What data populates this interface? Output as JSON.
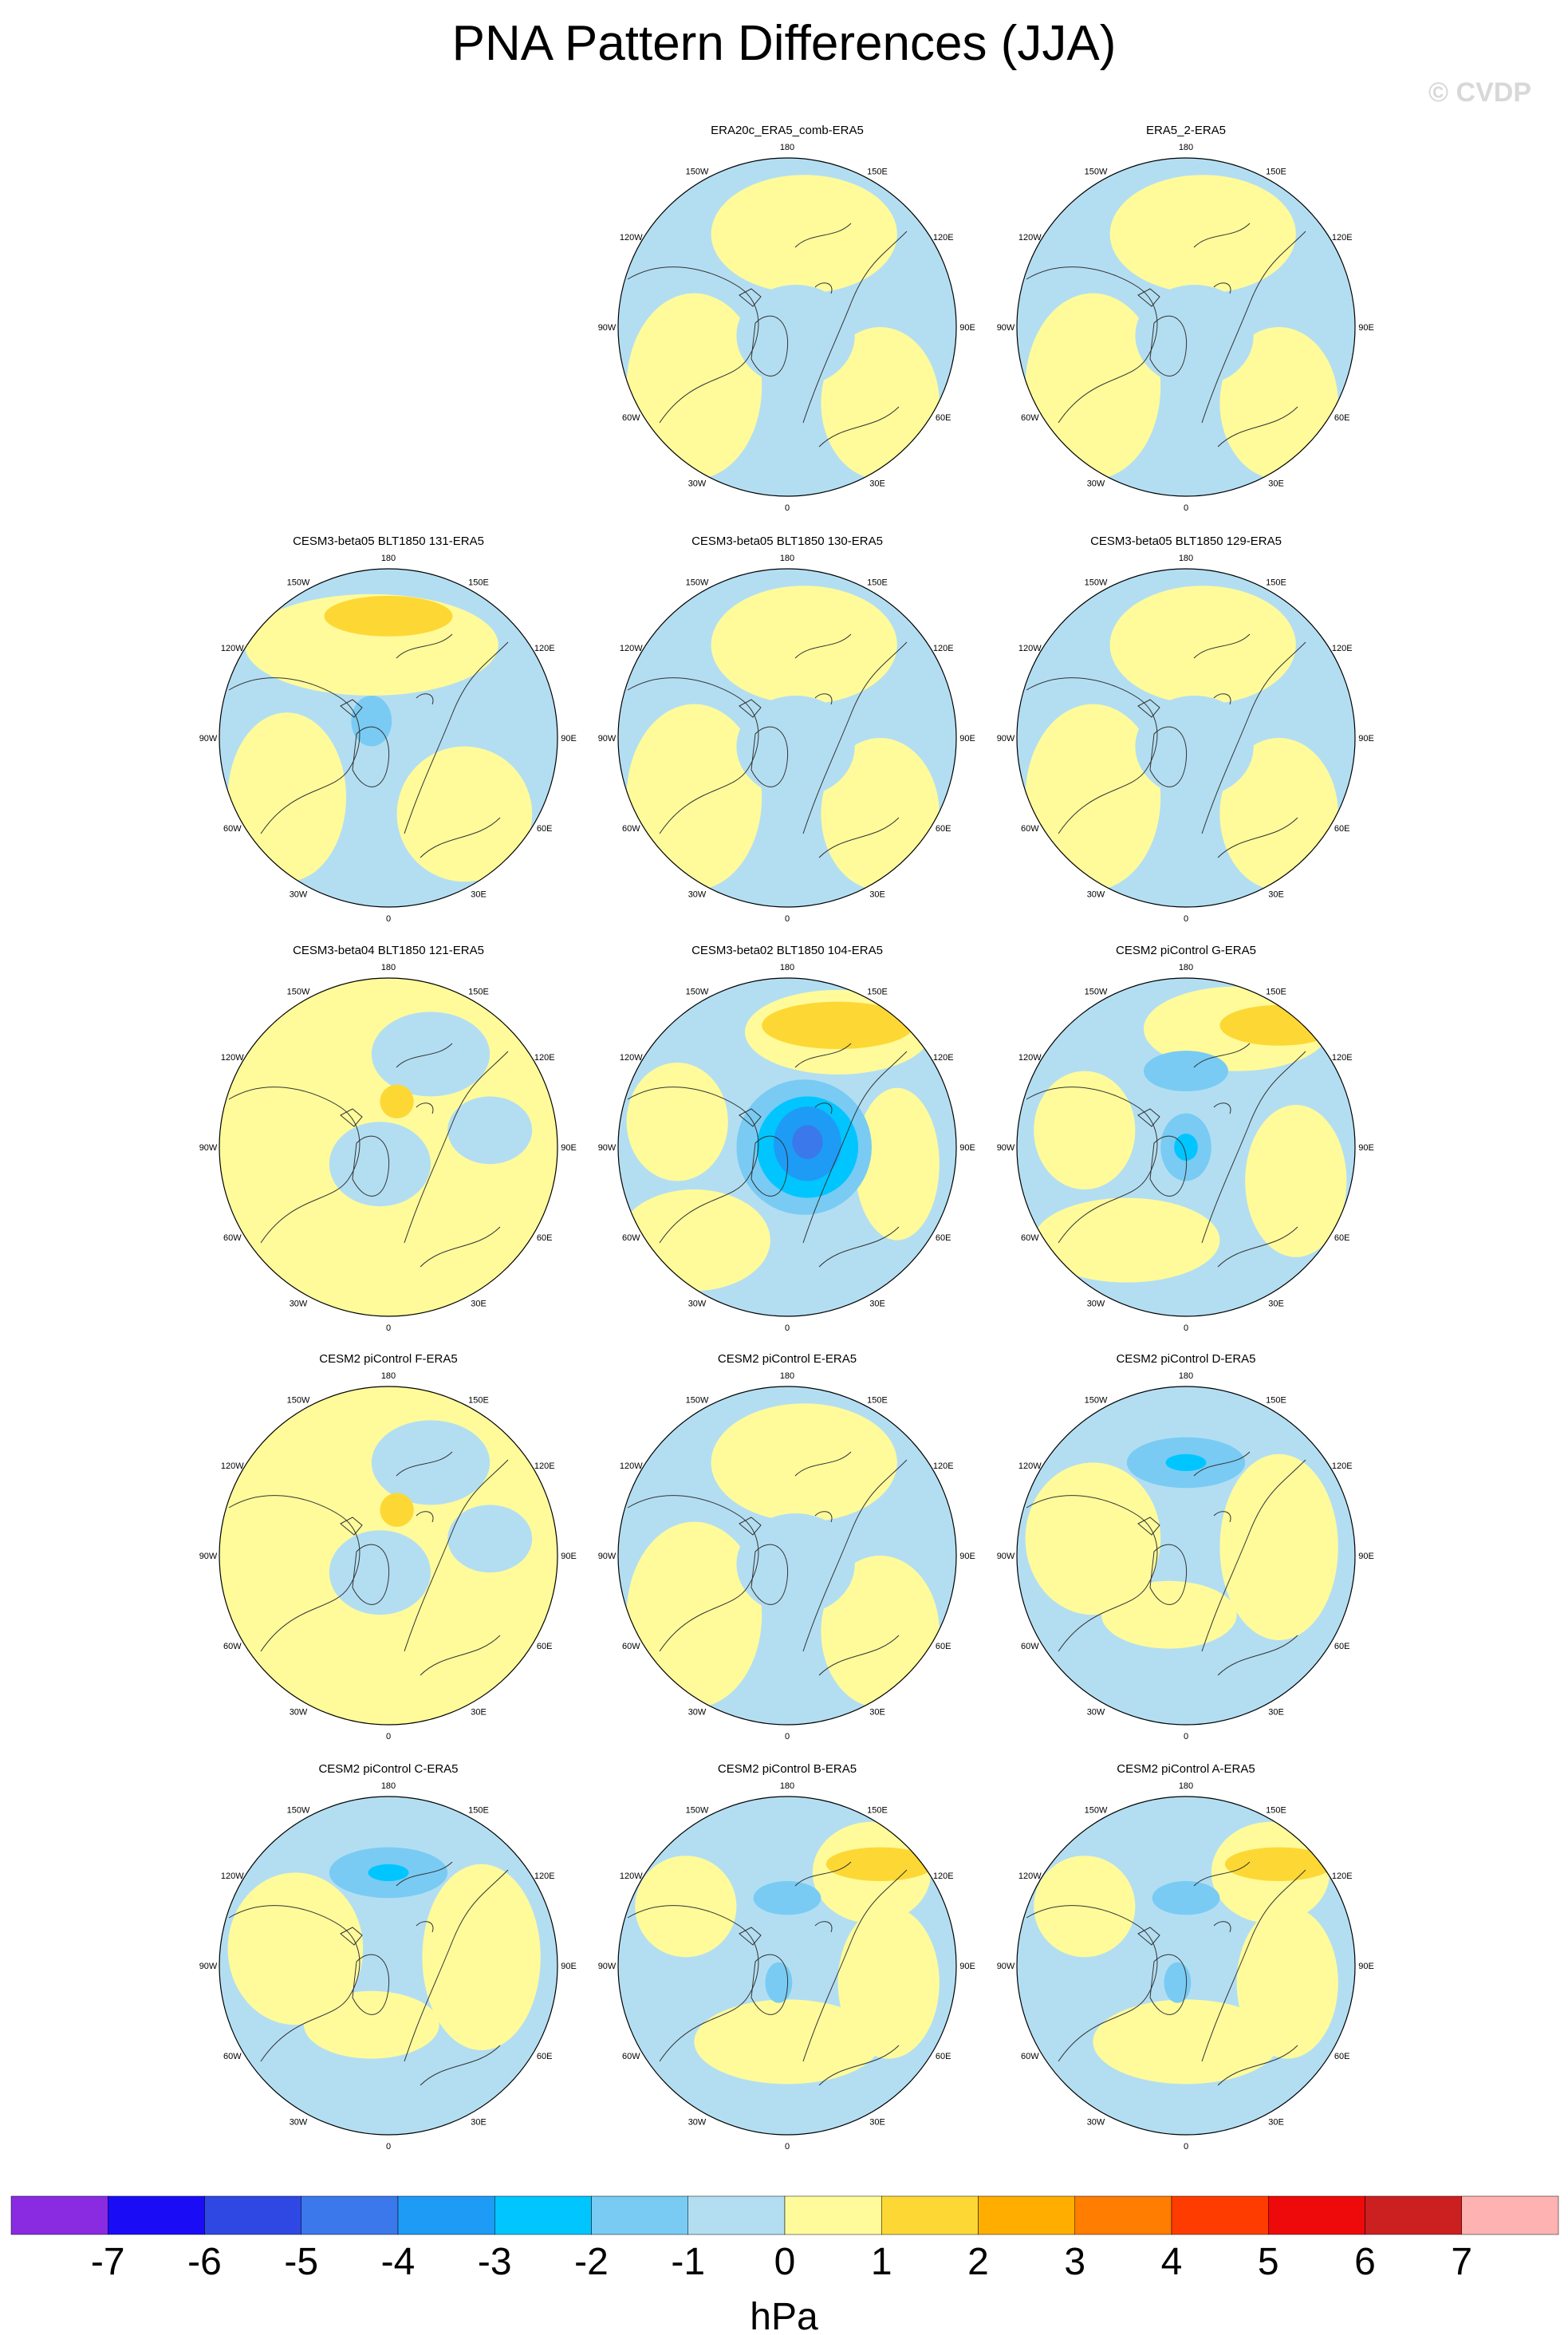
{
  "title": "PNA Pattern Differences (JJA)",
  "watermark": "© CVDP",
  "panels": [
    {
      "title": "ERA20c_ERA5_comb-ERA5",
      "pattern": "mixed",
      "row": 0,
      "col": 1
    },
    {
      "title": "ERA5_2-ERA5",
      "pattern": "mixed",
      "row": 0,
      "col": 2
    },
    {
      "title": "CESM3-beta05 BLT1850 131-ERA5",
      "pattern": "pos-north",
      "row": 1,
      "col": 0
    },
    {
      "title": "CESM3-beta05 BLT1850 130-ERA5",
      "pattern": "mixed",
      "row": 1,
      "col": 1
    },
    {
      "title": "CESM3-beta05 BLT1850 129-ERA5",
      "pattern": "mixed",
      "row": 1,
      "col": 2
    },
    {
      "title": "CESM3-beta04 BLT1850 121-ERA5",
      "pattern": "mostly-pos",
      "row": 2,
      "col": 0
    },
    {
      "title": "CESM3-beta02 BLT1850 104-ERA5",
      "pattern": "strong-neg-center",
      "row": 2,
      "col": 1
    },
    {
      "title": "CESM2 piControl G-ERA5",
      "pattern": "neg-center",
      "row": 2,
      "col": 2
    },
    {
      "title": "CESM2 piControl F-ERA5",
      "pattern": "mostly-pos",
      "row": 3,
      "col": 0
    },
    {
      "title": "CESM2 piControl E-ERA5",
      "pattern": "mixed",
      "row": 3,
      "col": 1
    },
    {
      "title": "CESM2 piControl D-ERA5",
      "pattern": "neg-north",
      "row": 3,
      "col": 2
    },
    {
      "title": "CESM2 piControl C-ERA5",
      "pattern": "neg-north",
      "row": 4,
      "col": 0
    },
    {
      "title": "CESM2 piControl B-ERA5",
      "pattern": "pos-ne",
      "row": 4,
      "col": 1
    },
    {
      "title": "CESM2 piControl A-ERA5",
      "pattern": "pos-ne",
      "row": 4,
      "col": 2
    }
  ],
  "lon_labels": [
    "180",
    "150E",
    "120E",
    "90E",
    "60E",
    "30E",
    "0",
    "30W",
    "60W",
    "90W",
    "120W",
    "150W"
  ],
  "colorbar": {
    "unit": "hPa",
    "labels": [
      "-7",
      "-6",
      "-5",
      "-4",
      "-3",
      "-2",
      "-1",
      "0",
      "1",
      "2",
      "3",
      "4",
      "5",
      "6",
      "7"
    ],
    "colors": [
      "#8a2be2",
      "#1a0df5",
      "#2f48e3",
      "#3a78ec",
      "#1e9bf5",
      "#00c5ff",
      "#79cbf3",
      "#b3def2",
      "#fffb9b",
      "#fdd835",
      "#ffae00",
      "#ff7d00",
      "#ff3c00",
      "#ee0a0a",
      "#cc2020",
      "#ffb2b2"
    ]
  }
}
